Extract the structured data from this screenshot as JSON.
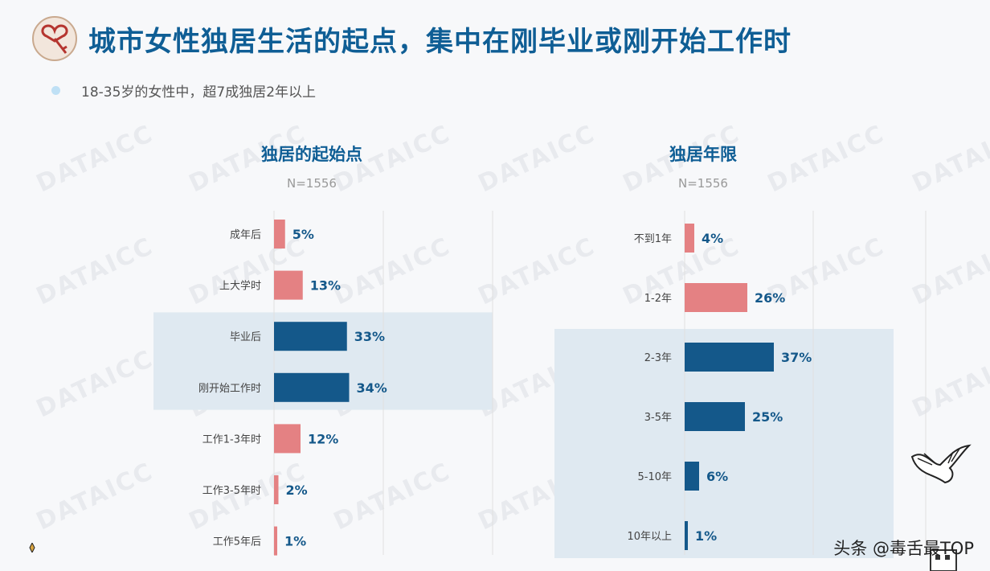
{
  "header": {
    "title": "城市女性独居生活的起点，集中在刚毕业或刚开始工作时",
    "subtitle": "18-35岁的女性中，超7成独居2年以上"
  },
  "watermark": "DATAICC",
  "footer": {
    "text": "头条 @毒舌最TOP"
  },
  "colors": {
    "highlight_bar": "#14588a",
    "normal_bar": "#e48183",
    "highlight_bg": "#dfe9f1",
    "title": "#0f5e95"
  },
  "chart_data": [
    {
      "type": "bar",
      "orientation": "horizontal",
      "title": "独居的起始点",
      "note": "N=1556",
      "categories": [
        "成年后",
        "上大学时",
        "毕业后",
        "刚开始工作时",
        "工作1-3年时",
        "工作3-5年时",
        "工作5年后"
      ],
      "values": [
        5,
        13,
        33,
        34,
        12,
        2,
        1
      ],
      "value_labels": [
        "5%",
        "13%",
        "33%",
        "34%",
        "12%",
        "2%",
        "1%"
      ],
      "highlighted": [
        "毕业后",
        "刚开始工作时"
      ],
      "xlim": [
        0,
        100
      ],
      "grid": true
    },
    {
      "type": "bar",
      "orientation": "horizontal",
      "title": "独居年限",
      "note": "N=1556",
      "categories": [
        "不到1年",
        "1-2年",
        "2-3年",
        "3-5年",
        "5-10年",
        "10年以上"
      ],
      "values": [
        4,
        26,
        37,
        25,
        6,
        1
      ],
      "value_labels": [
        "4%",
        "26%",
        "37%",
        "25%",
        "6%",
        "1%"
      ],
      "highlighted": [
        "2-3年",
        "3-5年",
        "5-10年",
        "10年以上"
      ],
      "xlim": [
        0,
        100
      ],
      "grid": true
    }
  ]
}
